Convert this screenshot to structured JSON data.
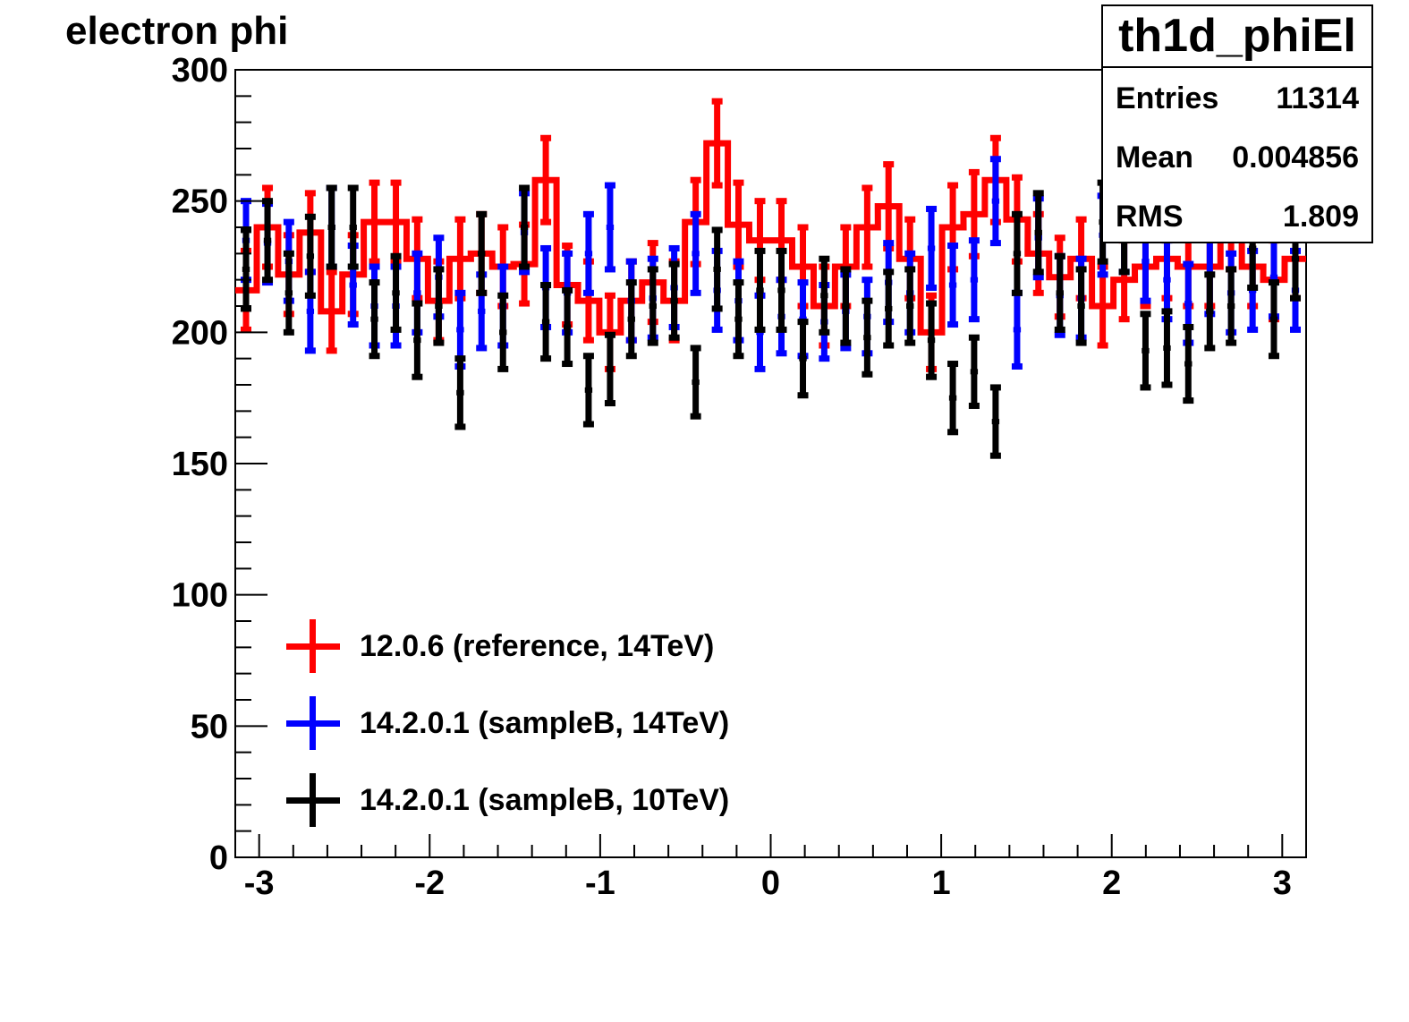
{
  "title": "electron phi",
  "stats": {
    "name": "th1d_phiEl",
    "entries_label": "Entries",
    "entries_value": "11314",
    "mean_label": "Mean",
    "mean_value": "0.004856",
    "rms_label": "RMS",
    "rms_value": "1.809"
  },
  "legend": [
    {
      "label": "12.0.6 (reference, 14TeV)",
      "color": "#ff0000"
    },
    {
      "label": "14.2.0.1 (sampleB, 14TeV)",
      "color": "#0000ff"
    },
    {
      "label": "14.2.0.1 (sampleB, 10TeV)",
      "color": "#000000"
    }
  ],
  "chart_data": {
    "type": "scatter",
    "title": "electron phi",
    "xlim": [
      -3.14,
      3.14
    ],
    "ylim": [
      0,
      300
    ],
    "x_ticks": [
      "-3",
      "-2",
      "-1",
      "0",
      "1",
      "2",
      "3"
    ],
    "y_ticks": [
      "0",
      "50",
      "100",
      "150",
      "200",
      "250",
      "300"
    ],
    "x_bin_width": 0.1256,
    "series": [
      {
        "name": "12.0.6 (reference, 14TeV)",
        "color": "#ff0000",
        "style": "histogram-with-errors",
        "x": [
          -3.077,
          -2.951,
          -2.826,
          -2.7,
          -2.575,
          -2.449,
          -2.324,
          -2.198,
          -2.073,
          -1.947,
          -1.821,
          -1.696,
          -1.57,
          -1.445,
          -1.319,
          -1.193,
          -1.068,
          -0.942,
          -0.817,
          -0.691,
          -0.566,
          -0.44,
          -0.314,
          -0.189,
          -0.063,
          0.063,
          0.189,
          0.314,
          0.44,
          0.566,
          0.691,
          0.817,
          0.942,
          1.068,
          1.193,
          1.319,
          1.445,
          1.57,
          1.696,
          1.821,
          1.947,
          2.073,
          2.198,
          2.324,
          2.449,
          2.575,
          2.7,
          2.826,
          2.951,
          3.077
        ],
        "values": [
          216,
          240,
          222,
          238,
          208,
          222,
          242,
          242,
          228,
          212,
          228,
          230,
          225,
          226,
          258,
          218,
          212,
          200,
          212,
          219,
          212,
          242,
          272,
          241,
          235,
          235,
          225,
          210,
          225,
          240,
          248,
          228,
          200,
          240,
          245,
          258,
          243,
          230,
          221,
          228,
          210,
          220,
          225,
          228,
          225,
          225,
          240,
          225,
          220,
          228
        ],
        "errors": [
          15,
          15,
          15,
          15,
          15,
          15,
          15,
          15,
          15,
          15,
          15,
          15,
          15,
          15,
          16,
          15,
          15,
          14,
          15,
          15,
          15,
          16,
          16,
          16,
          15,
          15,
          15,
          15,
          15,
          15,
          16,
          15,
          14,
          16,
          16,
          16,
          16,
          15,
          15,
          15,
          15,
          15,
          15,
          15,
          15,
          15,
          16,
          15,
          15,
          15
        ]
      },
      {
        "name": "14.2.0.1 (sampleB, 14TeV)",
        "color": "#0000ff",
        "style": "points-with-errors",
        "x": [
          -3.077,
          -2.951,
          -2.826,
          -2.7,
          -2.575,
          -2.449,
          -2.324,
          -2.198,
          -2.073,
          -1.947,
          -1.821,
          -1.696,
          -1.57,
          -1.445,
          -1.319,
          -1.193,
          -1.068,
          -0.942,
          -0.817,
          -0.691,
          -0.566,
          -0.44,
          -0.314,
          -0.189,
          -0.063,
          0.063,
          0.189,
          0.314,
          0.44,
          0.566,
          0.691,
          0.817,
          0.942,
          1.068,
          1.193,
          1.319,
          1.445,
          1.57,
          1.696,
          1.821,
          1.947,
          2.073,
          2.198,
          2.324,
          2.449,
          2.575,
          2.7,
          2.826,
          2.951,
          3.077
        ],
        "values": [
          235,
          234,
          227,
          208,
          240,
          218,
          210,
          210,
          215,
          221,
          201,
          208,
          210,
          238,
          217,
          215,
          230,
          240,
          212,
          213,
          217,
          230,
          216,
          212,
          200,
          206,
          205,
          204,
          208,
          206,
          219,
          215,
          232,
          218,
          220,
          250,
          201,
          236,
          214,
          213,
          237,
          238,
          227,
          220,
          211,
          222,
          215,
          216,
          221,
          216
        ],
        "errors": [
          15,
          15,
          15,
          15,
          15,
          15,
          15,
          15,
          15,
          15,
          14,
          14,
          15,
          15,
          15,
          15,
          15,
          16,
          15,
          15,
          15,
          15,
          15,
          15,
          14,
          14,
          14,
          14,
          14,
          14,
          15,
          15,
          15,
          15,
          15,
          16,
          14,
          15,
          15,
          15,
          15,
          15,
          15,
          15,
          15,
          15,
          15,
          15,
          15,
          15
        ]
      },
      {
        "name": "14.2.0.1 (sampleB, 10TeV)",
        "color": "#000000",
        "style": "points-with-errors",
        "x": [
          -3.077,
          -2.951,
          -2.826,
          -2.7,
          -2.575,
          -2.449,
          -2.324,
          -2.198,
          -2.073,
          -1.947,
          -1.821,
          -1.696,
          -1.57,
          -1.445,
          -1.319,
          -1.193,
          -1.068,
          -0.942,
          -0.817,
          -0.691,
          -0.566,
          -0.44,
          -0.314,
          -0.189,
          -0.063,
          0.063,
          0.189,
          0.314,
          0.44,
          0.566,
          0.691,
          0.817,
          0.942,
          1.068,
          1.193,
          1.319,
          1.445,
          1.57,
          1.696,
          1.821,
          1.947,
          2.073,
          2.198,
          2.324,
          2.449,
          2.575,
          2.7,
          2.826,
          2.951,
          3.077
        ],
        "values": [
          224,
          235,
          215,
          229,
          240,
          240,
          205,
          215,
          197,
          210,
          177,
          230,
          200,
          240,
          204,
          202,
          178,
          186,
          205,
          210,
          212,
          181,
          224,
          205,
          216,
          216,
          190,
          214,
          210,
          198,
          209,
          210,
          197,
          175,
          185,
          166,
          230,
          238,
          215,
          210,
          242,
          238,
          193,
          194,
          188,
          208,
          210,
          232,
          205,
          228
        ],
        "errors": [
          15,
          15,
          15,
          15,
          15,
          15,
          14,
          14,
          14,
          14,
          13,
          15,
          14,
          15,
          14,
          14,
          13,
          13,
          14,
          14,
          14,
          13,
          15,
          14,
          15,
          15,
          14,
          14,
          14,
          14,
          14,
          14,
          14,
          13,
          13,
          13,
          15,
          15,
          14,
          14,
          15,
          15,
          14,
          14,
          14,
          14,
          14,
          15,
          14,
          15
        ]
      }
    ]
  }
}
